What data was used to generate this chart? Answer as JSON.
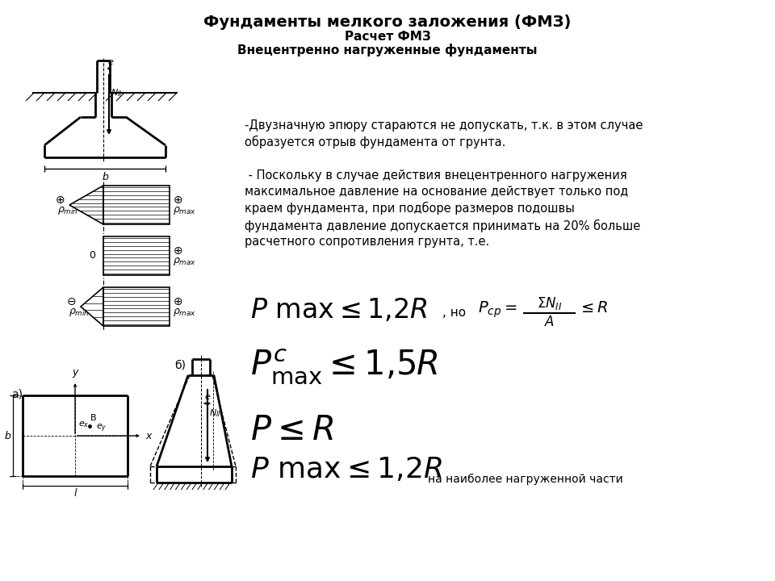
{
  "title_line1": "Фундаменты мелкого заложения (ФМЗ)",
  "title_line2": "Расчет ФМЗ",
  "title_line3": "Внецентренно нагруженные фундаменты",
  "text1": "-Двузначную эпюру стараются не допускать, т.к. в этом случае\nобразуется отрыв фундамента от грунта.",
  "text2": " - Поскольку в случае действия внецентренного нагружения\nмаксимальное давление на основание действует только под\nкраем фундамента, при подборе размеров подошвы\nфундамента давление допускается принимать на 20% больше\nрасчетного сопротивления грунта, т.е.",
  "bg_color": "#ffffff",
  "line_color": "#000000"
}
